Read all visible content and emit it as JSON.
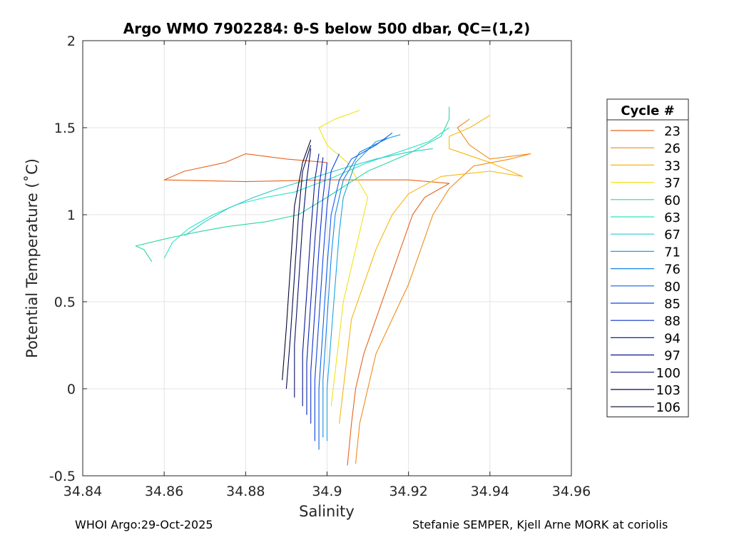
{
  "chart_data": {
    "type": "line",
    "title": "Argo WMO 7902284: θ-S below 500 dbar,  QC=(1,2)",
    "xlabel": "Salinity",
    "ylabel": "Potential Temperature (˚C)",
    "xlim": [
      34.84,
      34.96
    ],
    "ylim": [
      -0.5,
      2
    ],
    "xticks": [
      "34.84",
      "34.86",
      "34.88",
      "34.9",
      "34.92",
      "34.94",
      "34.96"
    ],
    "yticks": [
      "-0.5",
      "0",
      "0.5",
      "1",
      "1.5",
      "2"
    ],
    "grid": true,
    "legend": {
      "title": "Cycle #",
      "position": "right-outside"
    },
    "footer_left": "WHOI Argo:29-Oct-2025",
    "footer_right": "Stefanie SEMPER, Kjell Arne MORK at coriolis",
    "series": [
      {
        "name": "23",
        "color": "#e6631e",
        "points": [
          [
            34.905,
            -0.44
          ],
          [
            34.906,
            -0.2
          ],
          [
            34.907,
            0.0
          ],
          [
            34.909,
            0.2
          ],
          [
            34.912,
            0.4
          ],
          [
            34.915,
            0.6
          ],
          [
            34.918,
            0.8
          ],
          [
            34.921,
            1.0
          ],
          [
            34.924,
            1.1
          ],
          [
            34.93,
            1.18
          ],
          [
            34.92,
            1.2
          ],
          [
            34.9,
            1.2
          ],
          [
            34.88,
            1.19
          ],
          [
            34.86,
            1.2
          ],
          [
            34.865,
            1.25
          ],
          [
            34.875,
            1.3
          ],
          [
            34.88,
            1.35
          ],
          [
            34.89,
            1.32
          ],
          [
            34.9,
            1.3
          ]
        ]
      },
      {
        "name": "26",
        "color": "#f08c18",
        "points": [
          [
            34.907,
            -0.43
          ],
          [
            34.908,
            -0.2
          ],
          [
            34.91,
            0.0
          ],
          [
            34.912,
            0.2
          ],
          [
            34.916,
            0.4
          ],
          [
            34.92,
            0.6
          ],
          [
            34.923,
            0.8
          ],
          [
            34.926,
            1.0
          ],
          [
            34.93,
            1.15
          ],
          [
            34.936,
            1.28
          ],
          [
            34.945,
            1.32
          ],
          [
            34.95,
            1.35
          ],
          [
            34.94,
            1.32
          ],
          [
            34.935,
            1.4
          ],
          [
            34.932,
            1.5
          ],
          [
            34.935,
            1.55
          ]
        ]
      },
      {
        "name": "33",
        "color": "#f7b70f",
        "points": [
          [
            34.903,
            -0.2
          ],
          [
            34.904,
            0.0
          ],
          [
            34.905,
            0.2
          ],
          [
            34.906,
            0.4
          ],
          [
            34.909,
            0.6
          ],
          [
            34.912,
            0.8
          ],
          [
            34.916,
            1.0
          ],
          [
            34.92,
            1.12
          ],
          [
            34.928,
            1.22
          ],
          [
            34.94,
            1.25
          ],
          [
            34.948,
            1.22
          ],
          [
            34.94,
            1.3
          ],
          [
            34.93,
            1.38
          ],
          [
            34.93,
            1.45
          ],
          [
            34.935,
            1.5
          ],
          [
            34.94,
            1.57
          ]
        ]
      },
      {
        "name": "37",
        "color": "#f0e41a",
        "points": [
          [
            34.901,
            -0.1
          ],
          [
            34.902,
            0.1
          ],
          [
            34.903,
            0.3
          ],
          [
            34.904,
            0.5
          ],
          [
            34.906,
            0.7
          ],
          [
            34.908,
            0.9
          ],
          [
            34.91,
            1.1
          ],
          [
            34.905,
            1.3
          ],
          [
            34.9,
            1.4
          ],
          [
            34.898,
            1.5
          ],
          [
            34.902,
            1.55
          ],
          [
            34.908,
            1.6
          ]
        ]
      },
      {
        "name": "60",
        "color": "#2cd6a0",
        "points": [
          [
            34.857,
            0.73
          ],
          [
            34.855,
            0.8
          ],
          [
            34.853,
            0.82
          ],
          [
            34.86,
            0.86
          ],
          [
            34.868,
            0.9
          ],
          [
            34.875,
            0.93
          ],
          [
            34.885,
            0.96
          ],
          [
            34.893,
            1.0
          ],
          [
            34.9,
            1.1
          ],
          [
            34.91,
            1.25
          ],
          [
            34.92,
            1.35
          ],
          [
            34.928,
            1.45
          ],
          [
            34.93,
            1.55
          ],
          [
            34.93,
            1.62
          ]
        ]
      },
      {
        "name": "63",
        "color": "#2ce4c4",
        "points": [
          [
            34.86,
            0.75
          ],
          [
            34.862,
            0.84
          ],
          [
            34.866,
            0.92
          ],
          [
            34.872,
            1.0
          ],
          [
            34.878,
            1.06
          ],
          [
            34.885,
            1.1
          ],
          [
            34.892,
            1.13
          ],
          [
            34.9,
            1.2
          ],
          [
            34.91,
            1.3
          ],
          [
            34.92,
            1.38
          ],
          [
            34.925,
            1.42
          ],
          [
            34.93,
            1.5
          ]
        ]
      },
      {
        "name": "67",
        "color": "#2cc9cc",
        "points": [
          [
            34.865,
            0.88
          ],
          [
            34.87,
            0.96
          ],
          [
            34.876,
            1.04
          ],
          [
            34.882,
            1.1
          ],
          [
            34.888,
            1.15
          ],
          [
            34.895,
            1.2
          ],
          [
            34.903,
            1.26
          ],
          [
            34.912,
            1.32
          ],
          [
            34.92,
            1.36
          ],
          [
            34.926,
            1.38
          ]
        ]
      },
      {
        "name": "71",
        "color": "#1aa4e0",
        "points": [
          [
            34.9,
            -0.3
          ],
          [
            34.9,
            0.0
          ],
          [
            34.901,
            0.3
          ],
          [
            34.902,
            0.6
          ],
          [
            34.903,
            0.9
          ],
          [
            34.904,
            1.1
          ],
          [
            34.907,
            1.3
          ],
          [
            34.912,
            1.42
          ],
          [
            34.918,
            1.46
          ]
        ]
      },
      {
        "name": "76",
        "color": "#1686e6",
        "points": [
          [
            34.899,
            -0.28
          ],
          [
            34.899,
            0.05
          ],
          [
            34.9,
            0.4
          ],
          [
            34.901,
            0.75
          ],
          [
            34.902,
            1.0
          ],
          [
            34.904,
            1.2
          ],
          [
            34.908,
            1.36
          ],
          [
            34.915,
            1.44
          ]
        ]
      },
      {
        "name": "80",
        "color": "#1060e8",
        "points": [
          [
            34.898,
            -0.35
          ],
          [
            34.898,
            0.0
          ],
          [
            34.899,
            0.35
          ],
          [
            34.9,
            0.7
          ],
          [
            34.901,
            1.0
          ],
          [
            34.903,
            1.2
          ],
          [
            34.906,
            1.32
          ],
          [
            34.912,
            1.4
          ],
          [
            34.916,
            1.47
          ]
        ]
      },
      {
        "name": "85",
        "color": "#0d45e0",
        "points": [
          [
            34.897,
            -0.3
          ],
          [
            34.897,
            0.05
          ],
          [
            34.898,
            0.4
          ],
          [
            34.899,
            0.75
          ],
          [
            34.9,
            1.05
          ],
          [
            34.901,
            1.25
          ],
          [
            34.903,
            1.35
          ]
        ]
      },
      {
        "name": "88",
        "color": "#0b30cc",
        "points": [
          [
            34.896,
            -0.2
          ],
          [
            34.896,
            0.1
          ],
          [
            34.897,
            0.45
          ],
          [
            34.898,
            0.8
          ],
          [
            34.899,
            1.1
          ],
          [
            34.9,
            1.3
          ]
        ]
      },
      {
        "name": "94",
        "color": "#0a22b0",
        "points": [
          [
            34.895,
            -0.15
          ],
          [
            34.895,
            0.15
          ],
          [
            34.896,
            0.5
          ],
          [
            34.897,
            0.85
          ],
          [
            34.898,
            1.15
          ],
          [
            34.899,
            1.33
          ]
        ]
      },
      {
        "name": "97",
        "color": "#0a1890",
        "points": [
          [
            34.894,
            -0.1
          ],
          [
            34.894,
            0.2
          ],
          [
            34.895,
            0.55
          ],
          [
            34.896,
            0.9
          ],
          [
            34.897,
            1.2
          ],
          [
            34.898,
            1.35
          ]
        ]
      },
      {
        "name": "100",
        "color": "#080f6e",
        "points": [
          [
            34.892,
            -0.05
          ],
          [
            34.892,
            0.25
          ],
          [
            34.893,
            0.6
          ],
          [
            34.894,
            0.95
          ],
          [
            34.895,
            1.2
          ],
          [
            34.896,
            1.38
          ]
        ]
      },
      {
        "name": "103",
        "color": "#060a4e",
        "points": [
          [
            34.89,
            0.0
          ],
          [
            34.891,
            0.3
          ],
          [
            34.892,
            0.65
          ],
          [
            34.893,
            1.0
          ],
          [
            34.894,
            1.25
          ],
          [
            34.896,
            1.4
          ]
        ]
      },
      {
        "name": "106",
        "color": "#04062e",
        "points": [
          [
            34.889,
            0.05
          ],
          [
            34.89,
            0.35
          ],
          [
            34.891,
            0.7
          ],
          [
            34.892,
            1.05
          ],
          [
            34.894,
            1.3
          ],
          [
            34.896,
            1.43
          ]
        ]
      }
    ]
  }
}
